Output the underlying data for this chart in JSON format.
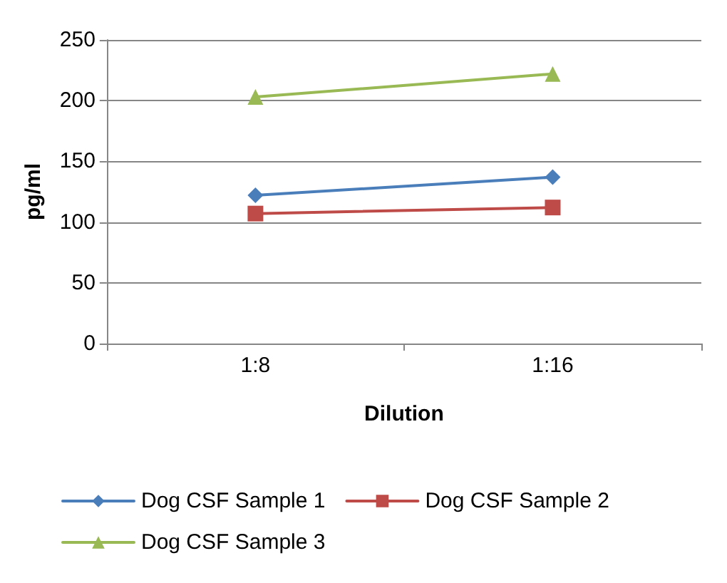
{
  "chart_data": {
    "type": "line",
    "xlabel": "Dilution",
    "ylabel": "pg/ml",
    "categories": [
      "1:8",
      "1:16"
    ],
    "series": [
      {
        "name": "Dog CSF Sample 1",
        "color": "#4a7ebb",
        "values": [
          122,
          137
        ],
        "marker": "diamond"
      },
      {
        "name": "Dog CSF Sample 2",
        "color": "#be4b48",
        "values": [
          107,
          112
        ],
        "marker": "square"
      },
      {
        "name": "Dog CSF Sample 3",
        "color": "#98b954",
        "values": [
          203,
          222
        ],
        "marker": "triangle"
      }
    ],
    "ylim": [
      0,
      250
    ],
    "yticks": [
      0,
      50,
      100,
      150,
      200,
      250
    ],
    "grid": "y",
    "legend": "bottom",
    "line_style": "solid"
  }
}
